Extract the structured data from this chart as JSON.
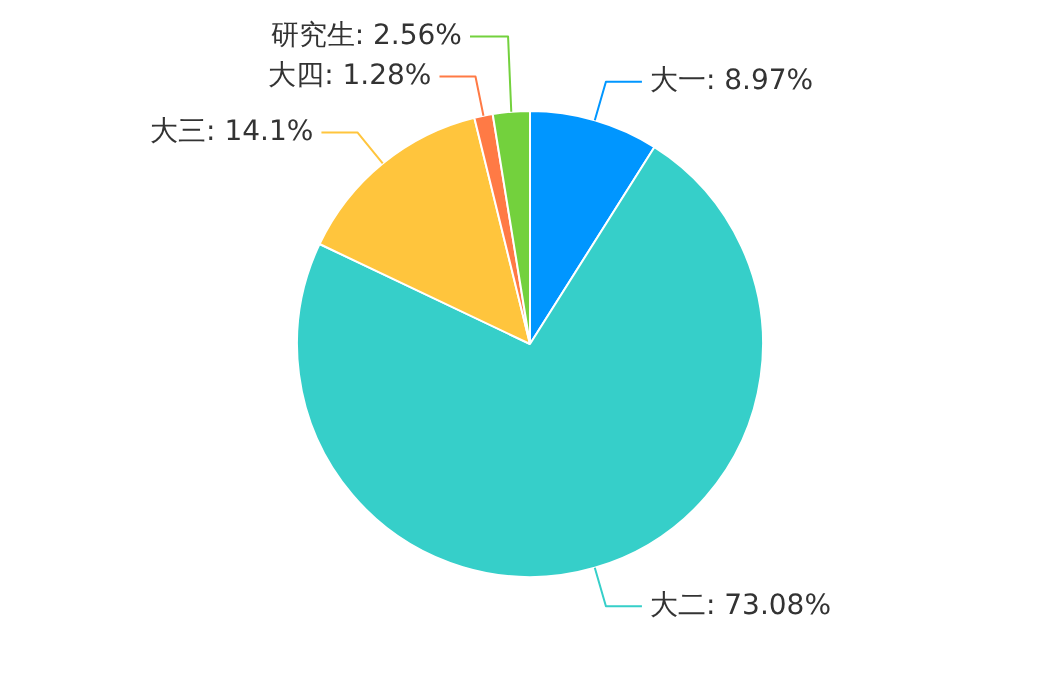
{
  "chart_data": {
    "type": "pie",
    "categories": [
      "大一",
      "大二",
      "大三",
      "大四",
      "研究生"
    ],
    "values": [
      8.97,
      73.08,
      14.1,
      1.28,
      2.56
    ],
    "value_labels": [
      "8.97%",
      "73.08%",
      "14.1%",
      "1.28%",
      "2.56%"
    ],
    "colors": [
      "#0096ff",
      "#36cfc9",
      "#ffc53d",
      "#ff7a45",
      "#73d13d"
    ]
  }
}
